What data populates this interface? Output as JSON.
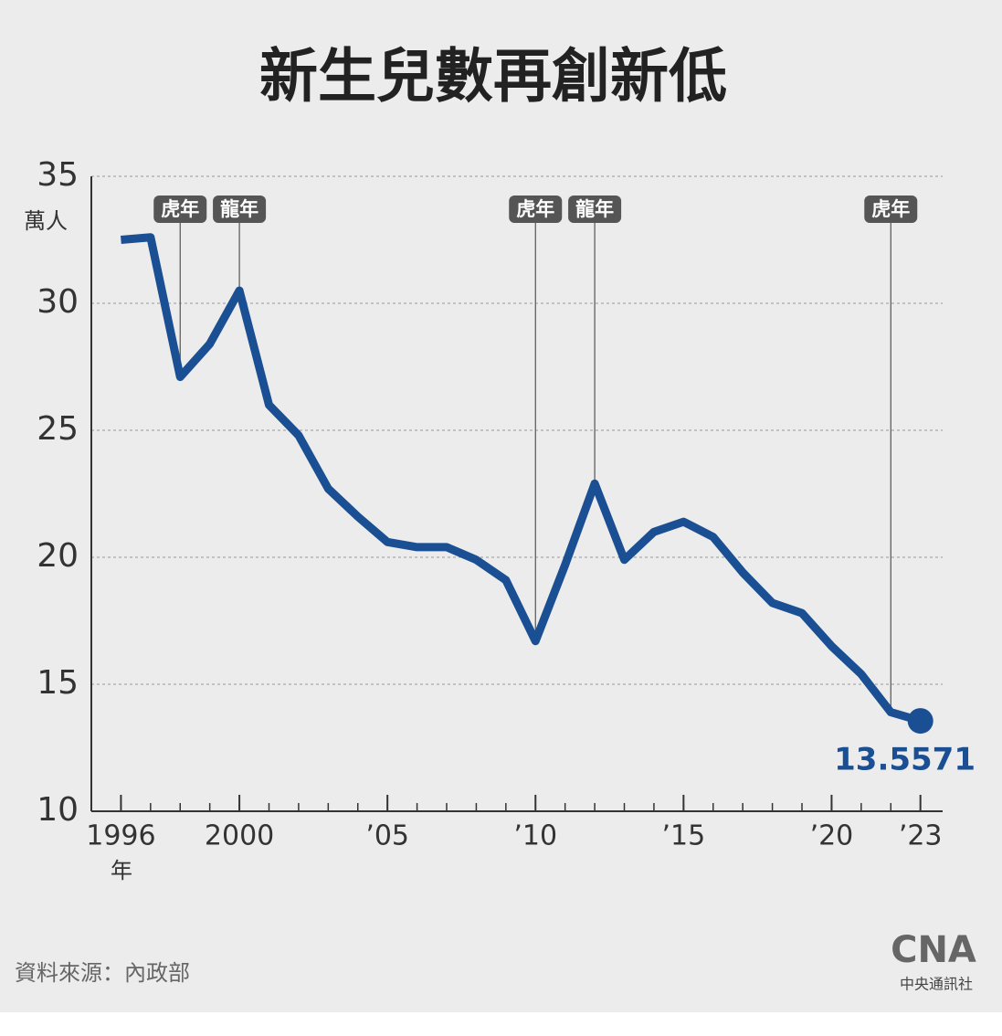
{
  "chart_data": {
    "type": "line",
    "title": "新生兒數再創新低",
    "y_unit": "萬人",
    "x_unit": "年",
    "x": [
      1996,
      1997,
      1998,
      1999,
      2000,
      2001,
      2002,
      2003,
      2004,
      2005,
      2006,
      2007,
      2008,
      2009,
      2010,
      2011,
      2012,
      2013,
      2014,
      2015,
      2016,
      2017,
      2018,
      2019,
      2020,
      2021,
      2022,
      2023
    ],
    "series": [
      {
        "name": "新生兒數",
        "color": "#1b4f93",
        "values": [
          32.5,
          32.6,
          27.1,
          28.4,
          30.5,
          26.0,
          24.8,
          22.7,
          21.6,
          20.6,
          20.4,
          20.4,
          19.9,
          19.1,
          16.7,
          19.7,
          22.9,
          19.9,
          21.0,
          21.4,
          20.8,
          19.4,
          18.2,
          17.8,
          16.5,
          15.4,
          13.9,
          13.5571
        ]
      }
    ],
    "xlim": [
      1995,
      2023.75
    ],
    "ylim": [
      10,
      35
    ],
    "yticks": [
      10,
      15,
      20,
      25,
      30,
      35
    ],
    "xticks": [
      {
        "value": 1996,
        "label": "1996"
      },
      {
        "value": 2000,
        "label": "2000"
      },
      {
        "value": 2005,
        "label": "ʼ05"
      },
      {
        "value": 2010,
        "label": "ʼ10"
      },
      {
        "value": 2015,
        "label": "ʼ15"
      },
      {
        "value": 2020,
        "label": "ʼ20"
      },
      {
        "value": 2023,
        "label": "ʼ23"
      }
    ],
    "grid": true,
    "annotations": [
      {
        "x": 1998,
        "label": "虎年"
      },
      {
        "x": 2000,
        "label": "龍年"
      },
      {
        "x": 2010,
        "label": "虎年"
      },
      {
        "x": 2012,
        "label": "龍年"
      },
      {
        "x": 2022,
        "label": "虎年"
      }
    ],
    "source": "資料來源：內政部",
    "logo": "CNA",
    "logo_caption": "中央通訊社"
  }
}
